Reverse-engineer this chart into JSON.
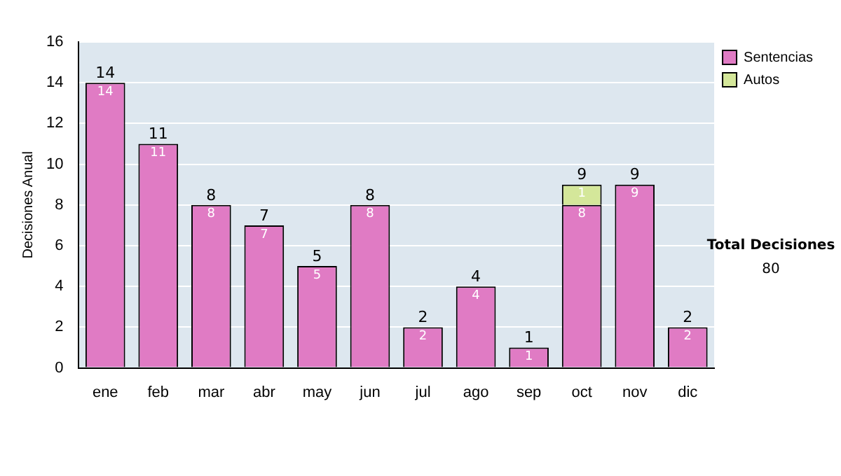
{
  "chart_data": {
    "type": "bar",
    "ylabel": "Decisiones Anual",
    "categories": [
      "ene",
      "feb",
      "mar",
      "abr",
      "may",
      "jun",
      "jul",
      "ago",
      "sep",
      "oct",
      "nov",
      "dic"
    ],
    "series": [
      {
        "name": "Sentencias",
        "color": "#e07bc4",
        "values": [
          14,
          11,
          8,
          7,
          5,
          8,
          2,
          4,
          1,
          8,
          9,
          2
        ]
      },
      {
        "name": "Autos",
        "color": "#d4e79a",
        "values": [
          null,
          null,
          null,
          null,
          null,
          null,
          null,
          null,
          null,
          1,
          null,
          null
        ]
      }
    ],
    "stacked": true,
    "ylim": [
      0,
      16
    ],
    "yticks": [
      0,
      2,
      4,
      6,
      8,
      10,
      12,
      14,
      16
    ],
    "grid": "y",
    "legend": "right",
    "data_labels": true,
    "totals": [
      "14",
      "11",
      "8",
      "7",
      "5",
      "8",
      "2",
      "4",
      "1",
      "9",
      "9",
      "2"
    ],
    "annotations": [
      "Total Decisiones",
      "80"
    ]
  }
}
